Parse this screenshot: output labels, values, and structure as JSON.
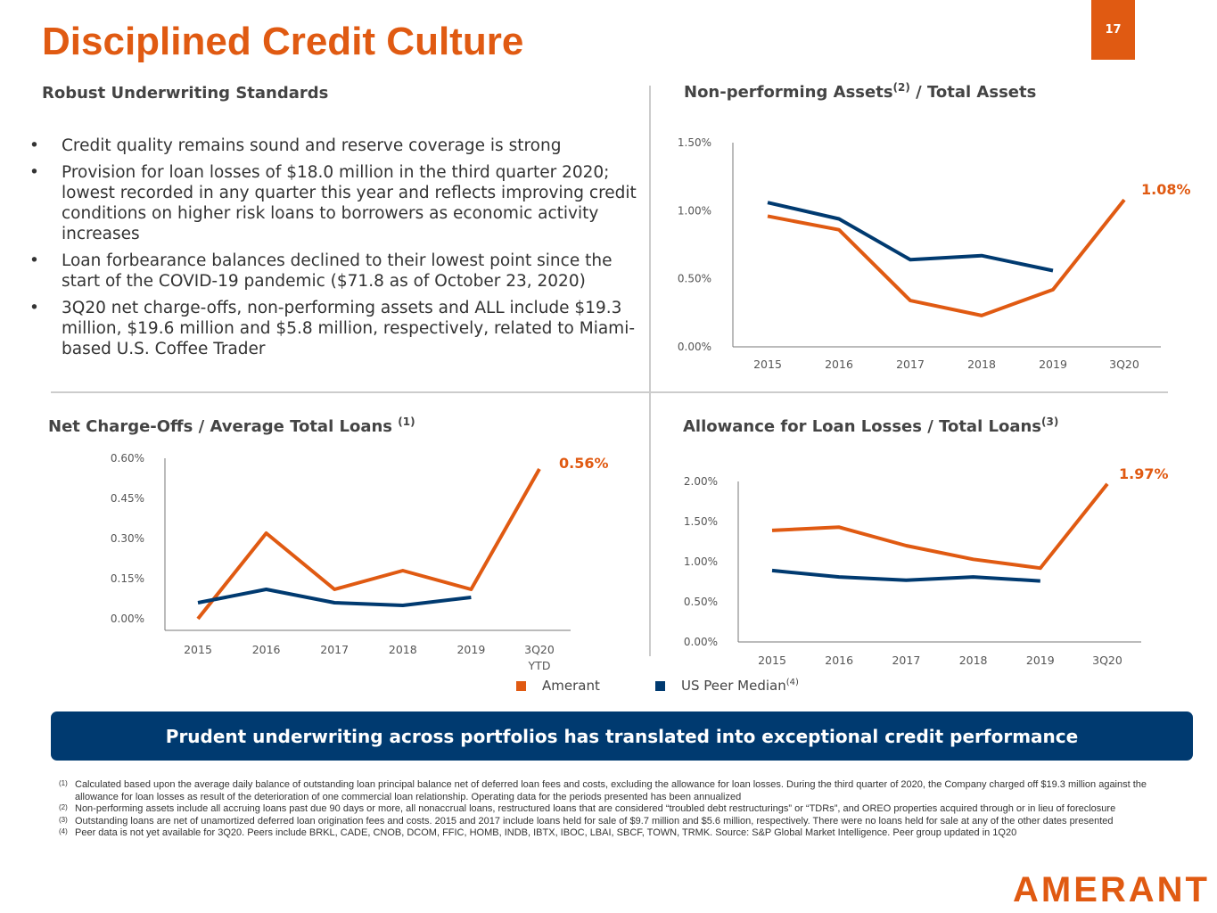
{
  "title": "Disciplined Credit Culture",
  "page_number": "17",
  "left_section": {
    "heading": "Robust Underwriting Standards",
    "bullets": [
      "Credit quality remains sound and reserve coverage is strong",
      "Provision for loan losses of $18.0 million in the third quarter 2020; lowest recorded in any quarter this year and reflects improving credit conditions on higher risk loans to borrowers as economic activity increases",
      "Loan forbearance balances declined to their lowest point since the start of the COVID-19 pandemic ($71.8 as of October 23, 2020)",
      "3Q20 net charge-offs, non-performing assets and ALL include $19.3 million, $19.6 million and $5.8 million, respectively, related to Miami-based U.S. Coffee Trader"
    ]
  },
  "colors": {
    "amerant": "#e05a12",
    "peer": "#003a70"
  },
  "chart_data": [
    {
      "type": "line",
      "title": "Non-performing Assets / Total Assets",
      "title_main": "Non-performing Assets",
      "title_sup": "(2)",
      "title_rest": " / Total Assets",
      "categories": [
        "2015",
        "2016",
        "2017",
        "2018",
        "2019",
        "3Q20"
      ],
      "yticks": [
        "0.00%",
        "0.50%",
        "1.00%",
        "1.50%"
      ],
      "ylim": [
        0,
        1.5
      ],
      "series": [
        {
          "name": "Amerant",
          "values": [
            0.96,
            0.86,
            0.34,
            0.23,
            0.42,
            1.08
          ]
        },
        {
          "name": "US Peer Median",
          "values": [
            1.06,
            0.94,
            0.64,
            0.67,
            0.56,
            null
          ]
        }
      ],
      "annotation": "1.08%"
    },
    {
      "type": "line",
      "title": "Net Charge-Offs / Average Total Loans",
      "title_main": "Net Charge-Offs / Average Total Loans ",
      "title_sup": "(1)",
      "title_rest": "",
      "categories": [
        "2015",
        "2016",
        "2017",
        "2018",
        "2019",
        "3Q20"
      ],
      "category_sub": "YTD",
      "yticks": [
        "0.00%",
        "0.15%",
        "0.30%",
        "0.45%",
        "0.60%"
      ],
      "ylim": [
        0,
        0.6
      ],
      "series": [
        {
          "name": "Amerant",
          "values": [
            0.0,
            0.32,
            0.11,
            0.18,
            0.11,
            0.56
          ]
        },
        {
          "name": "US Peer Median",
          "values": [
            0.06,
            0.11,
            0.06,
            0.05,
            0.08,
            null
          ]
        }
      ],
      "annotation": "0.56%"
    },
    {
      "type": "line",
      "title": "Allowance for Loan Losses / Total Loans",
      "title_main": "Allowance for Loan Losses / Total Loans",
      "title_sup": "(3)",
      "title_rest": "",
      "categories": [
        "2015",
        "2016",
        "2017",
        "2018",
        "2019",
        "3Q20"
      ],
      "yticks": [
        "0.00%",
        "0.50%",
        "1.00%",
        "1.50%",
        "2.00%"
      ],
      "ylim": [
        0,
        2.0
      ],
      "series": [
        {
          "name": "Amerant",
          "values": [
            1.39,
            1.43,
            1.2,
            1.03,
            0.92,
            1.97
          ]
        },
        {
          "name": "US Peer Median",
          "values": [
            0.89,
            0.81,
            0.77,
            0.81,
            0.76,
            null
          ]
        }
      ],
      "annotation": "1.97%"
    }
  ],
  "legend": {
    "amerant": "Amerant",
    "peer": "US Peer Median",
    "peer_sup": "(4)"
  },
  "banner": "Prudent underwriting across portfolios has translated into exceptional credit performance",
  "footnotes": [
    {
      "mark": "(1)",
      "text": "Calculated based upon the average daily balance of outstanding loan principal balance net of deferred loan fees and costs, excluding the allowance for loan losses. During the third quarter of 2020, the Company charged off $19.3 million against the allowance for loan losses as result of the deterioration of one commercial loan relationship. Operating data for the periods presented has been annualized"
    },
    {
      "mark": "(2)",
      "text": "Non-performing assets include all accruing loans past due 90 days or more, all nonaccrual loans, restructured loans that are considered “troubled debt restructurings” or “TDRs”, and OREO properties acquired through or in lieu of foreclosure"
    },
    {
      "mark": "(3)",
      "text": "Outstanding loans are net of unamortized deferred loan origination fees and costs. 2015 and 2017 include loans held for sale of $9.7 million and $5.6 million, respectively. There were no loans held for sale at any of the other dates presented"
    },
    {
      "mark": "(4)",
      "text": "Peer data is not yet available for 3Q20. Peers include BRKL, CADE, CNOB, DCOM, FFIC, HOMB, INDB, IBTX, IBOC, LBAI, SBCF, TOWN, TRMK. Source: S&P Global Market Intelligence.  Peer group updated in 1Q20"
    }
  ],
  "logo": "AMERANT"
}
